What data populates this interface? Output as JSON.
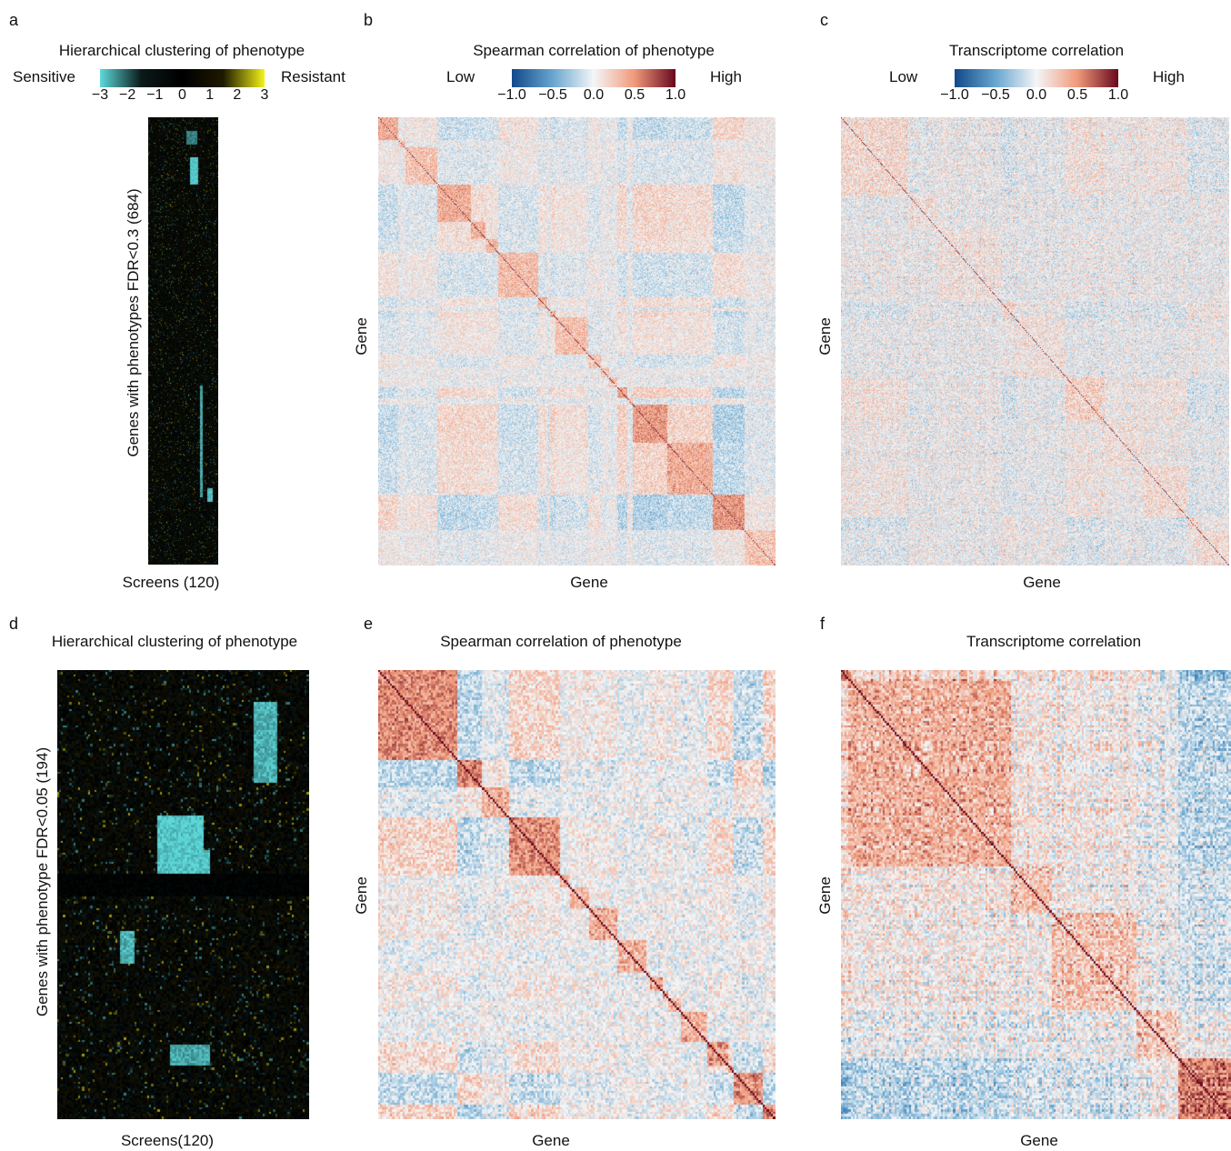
{
  "figure": {
    "panels": {
      "a": {
        "letter": "a",
        "title": "Hierarchical clustering of phenotype",
        "colorbar": {
          "left_label": "Sensitive",
          "right_label": "Resistant",
          "ticks": [
            "−3",
            "−2",
            "−1",
            "0",
            "1",
            "2",
            "3"
          ],
          "range": [
            -3,
            3
          ],
          "colormap": [
            "#5ed8da",
            "#0b1a1a",
            "#000000",
            "#1f1a00",
            "#f2f21a"
          ]
        },
        "ylabel": "Genes with phenotypes FDR<0.3 (684)",
        "xlabel": "Screens (120)"
      },
      "b": {
        "letter": "b",
        "title": "Spearman correlation of phenotype",
        "colorbar": {
          "left_label": "Low",
          "right_label": "High",
          "ticks": [
            "−1.0",
            "−0.5",
            "0.0",
            "0.5",
            "1.0"
          ],
          "range": [
            -1,
            1
          ],
          "colormap": [
            "#134b8c",
            "#6aa7d0",
            "#f5f7f8",
            "#f19b7c",
            "#6b0a1f"
          ]
        },
        "ylabel": "Gene",
        "xlabel": "Gene"
      },
      "c": {
        "letter": "c",
        "title": "Transcriptome correlation",
        "colorbar": {
          "left_label": "Low",
          "right_label": "High",
          "ticks": [
            "−1.0",
            "−0.5",
            "0.0",
            "0.5",
            "1.0"
          ],
          "range": [
            -1,
            1
          ],
          "colormap": [
            "#134b8c",
            "#6aa7d0",
            "#f5f7f8",
            "#f19b7c",
            "#6b0a1f"
          ]
        },
        "ylabel": "Gene",
        "xlabel": "Gene"
      },
      "d": {
        "letter": "d",
        "title": "Hierarchical clustering of phenotype",
        "ylabel": "Genes with phenotype FDR<0.05 (194)",
        "xlabel": "Screens(120)"
      },
      "e": {
        "letter": "e",
        "title": "Spearman correlation of phenotype",
        "ylabel": "Gene",
        "xlabel": "Gene"
      },
      "f": {
        "letter": "f",
        "title": "Transcriptome correlation",
        "ylabel": "Gene",
        "xlabel": "Gene"
      }
    }
  },
  "chart_data": [
    {
      "type": "heatmap",
      "panel": "a",
      "title": "Hierarchical clustering of phenotype",
      "rows": 684,
      "cols": 120,
      "value_range": [
        -3,
        3
      ],
      "xlabel": "Screens (120)",
      "ylabel": "Genes with phenotypes FDR<0.3 (684)"
    },
    {
      "type": "heatmap",
      "panel": "b",
      "title": "Spearman correlation of phenotype",
      "rows": 684,
      "cols": 684,
      "value_range": [
        -1,
        1
      ],
      "diagonal": 1.0,
      "xlabel": "Gene",
      "ylabel": "Gene"
    },
    {
      "type": "heatmap",
      "panel": "c",
      "title": "Transcriptome correlation",
      "rows": 684,
      "cols": 684,
      "value_range": [
        -1,
        1
      ],
      "diagonal": 1.0,
      "xlabel": "Gene",
      "ylabel": "Gene"
    },
    {
      "type": "heatmap",
      "panel": "d",
      "title": "Hierarchical clustering of phenotype",
      "rows": 194,
      "cols": 120,
      "value_range": [
        -3,
        3
      ],
      "xlabel": "Screens(120)",
      "ylabel": "Genes with phenotype FDR<0.05 (194)"
    },
    {
      "type": "heatmap",
      "panel": "e",
      "title": "Spearman correlation of phenotype",
      "rows": 194,
      "cols": 194,
      "value_range": [
        -1,
        1
      ],
      "diagonal": 1.0,
      "xlabel": "Gene",
      "ylabel": "Gene"
    },
    {
      "type": "heatmap",
      "panel": "f",
      "title": "Transcriptome correlation",
      "rows": 194,
      "cols": 194,
      "value_range": [
        -1,
        1
      ],
      "diagonal": 1.0,
      "xlabel": "Gene",
      "ylabel": "Gene"
    }
  ]
}
